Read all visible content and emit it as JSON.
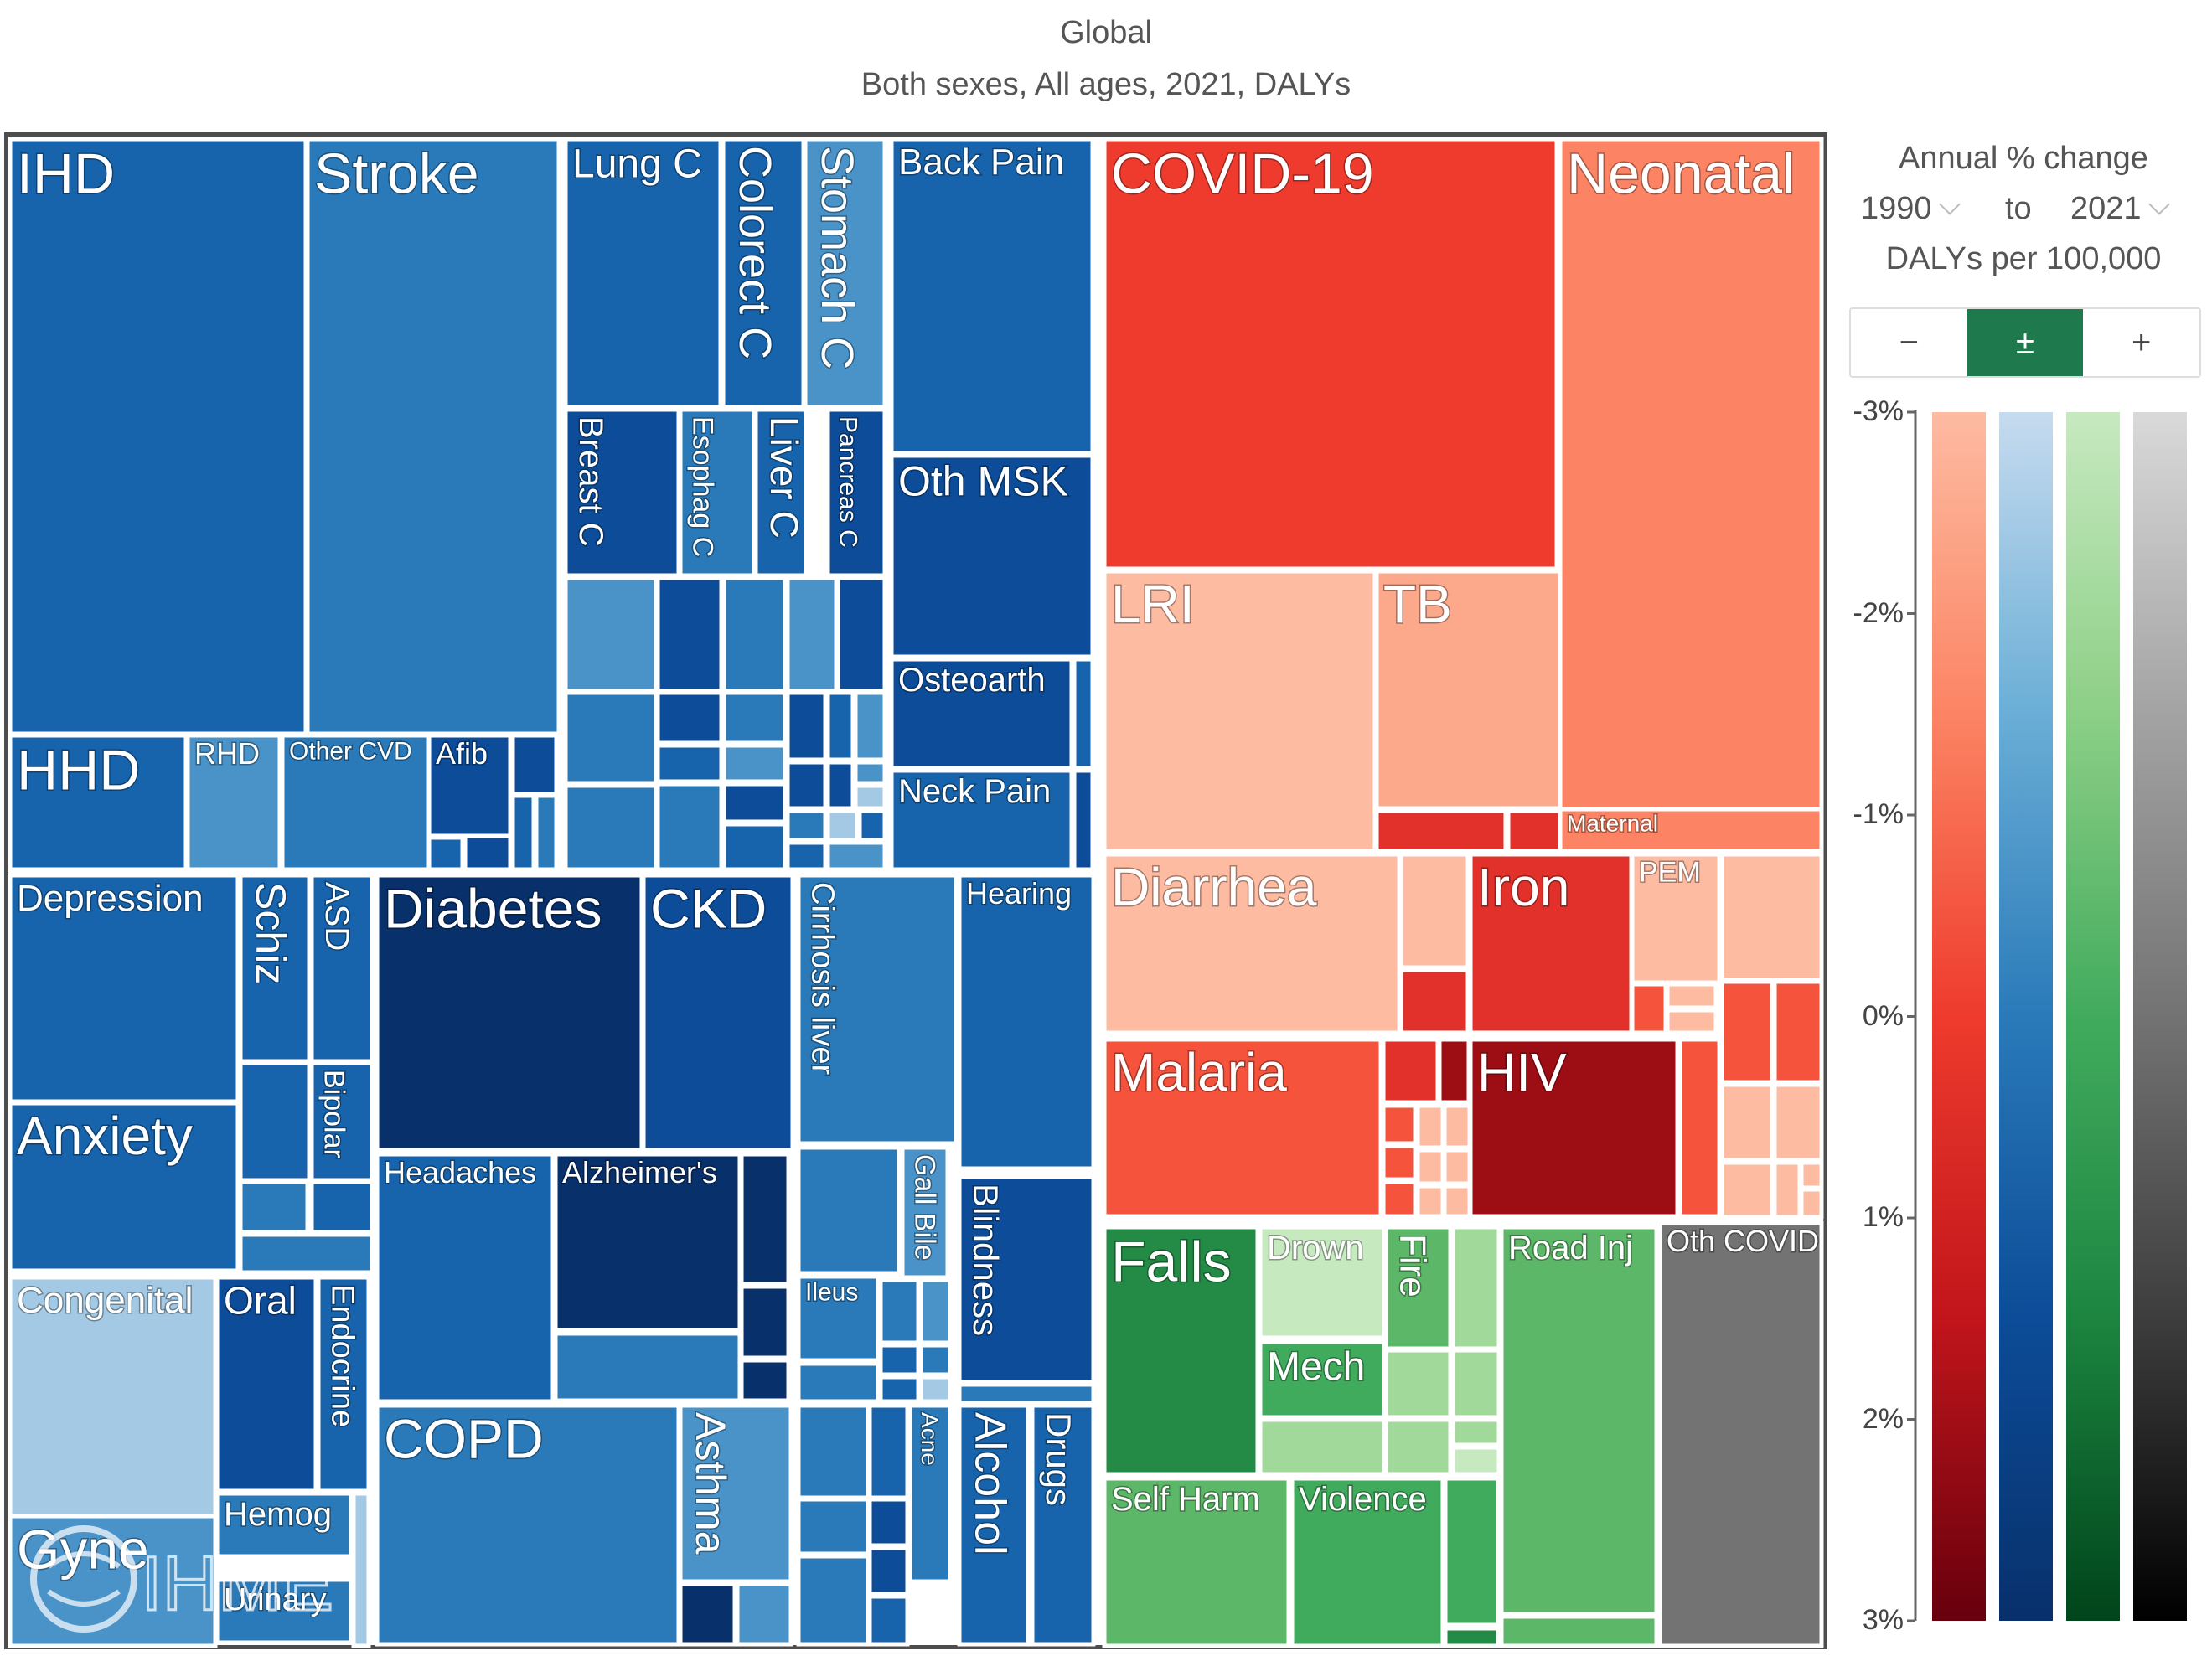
{
  "title": "Global",
  "subtitle": "Both sexes, All ages, 2021, DALYs",
  "legend": {
    "title": "Annual % change",
    "year_from": "1990",
    "to_word": "to",
    "year_to": "2021",
    "unit": "DALYs per 100,000",
    "toggle": [
      {
        "label": "−",
        "active": false
      },
      {
        "label": "±",
        "active": true
      },
      {
        "label": "+",
        "active": false
      }
    ],
    "ticks": [
      "-3%",
      "-2%",
      "-1%",
      "0%",
      "1%",
      "2%",
      "3%"
    ],
    "ramps": [
      "red",
      "blue",
      "green",
      "gray"
    ]
  },
  "watermark": "IHME",
  "chart_data": {
    "type": "treemap",
    "colors": {
      "dark_navy": "#08306b",
      "dark_blue": "#0c4c98",
      "blue": "#1764ad",
      "mid_blue": "#2a7ab9",
      "light_blue": "#4a93c8",
      "pale_blue": "#a3c9e4",
      "bright_red": "#ee3b2d",
      "dark_red": "#9d0d14",
      "red": "#e2302a",
      "red_orange": "#f5533b",
      "coral": "#fc8464",
      "salmon": "#fca88b",
      "light_salmon": "#fdbba1",
      "dark_green": "#238b45",
      "green": "#41ab5d",
      "mid_green": "#5cb769",
      "light_green": "#a1d99b",
      "pale_green": "#c7e9c0",
      "gray": "#737373"
    },
    "labeled_cells": [
      {
        "label": "IHD",
        "color": "blue"
      },
      {
        "label": "Stroke",
        "color": "mid_blue"
      },
      {
        "label": "Lung C",
        "color": "blue"
      },
      {
        "label": "Colorect C",
        "color": "blue"
      },
      {
        "label": "Stomach C",
        "color": "light_blue"
      },
      {
        "label": "Back Pain",
        "color": "blue"
      },
      {
        "label": "Breast C",
        "color": "dark_blue"
      },
      {
        "label": "Esophag C",
        "color": "mid_blue"
      },
      {
        "label": "Liver C",
        "color": "blue"
      },
      {
        "label": "Pancreas C",
        "color": "dark_blue"
      },
      {
        "label": "Oth MSK",
        "color": "dark_blue"
      },
      {
        "label": "Osteoarth",
        "color": "dark_blue"
      },
      {
        "label": "Neck Pain",
        "color": "blue"
      },
      {
        "label": "HHD",
        "color": "blue"
      },
      {
        "label": "RHD",
        "color": "light_blue"
      },
      {
        "label": "Other CVD",
        "color": "mid_blue"
      },
      {
        "label": "Afib",
        "color": "dark_blue"
      },
      {
        "label": "COVID-19",
        "color": "bright_red"
      },
      {
        "label": "Neonatal",
        "color": "coral"
      },
      {
        "label": "LRI",
        "color": "light_salmon"
      },
      {
        "label": "TB",
        "color": "salmon"
      },
      {
        "label": "Maternal",
        "color": "coral"
      },
      {
        "label": "Diarrhea",
        "color": "light_salmon"
      },
      {
        "label": "Iron",
        "color": "red"
      },
      {
        "label": "PEM",
        "color": "light_salmon"
      },
      {
        "label": "Malaria",
        "color": "red_orange"
      },
      {
        "label": "HIV",
        "color": "dark_red"
      },
      {
        "label": "Depression",
        "color": "blue"
      },
      {
        "label": "Schiz",
        "color": "blue"
      },
      {
        "label": "ASD",
        "color": "blue"
      },
      {
        "label": "Bipolar",
        "color": "blue"
      },
      {
        "label": "Anxiety",
        "color": "blue"
      },
      {
        "label": "Diabetes",
        "color": "dark_navy"
      },
      {
        "label": "CKD",
        "color": "dark_blue"
      },
      {
        "label": "Cirrhosis liver",
        "color": "mid_blue"
      },
      {
        "label": "Hearing",
        "color": "blue"
      },
      {
        "label": "Headaches",
        "color": "blue"
      },
      {
        "label": "Alzheimer's",
        "color": "dark_navy"
      },
      {
        "label": "Gall Bile",
        "color": "light_blue"
      },
      {
        "label": "Ileus",
        "color": "mid_blue"
      },
      {
        "label": "Blindness",
        "color": "dark_blue"
      },
      {
        "label": "Congenital",
        "color": "pale_blue"
      },
      {
        "label": "Oral",
        "color": "dark_blue"
      },
      {
        "label": "Endocrine",
        "color": "blue"
      },
      {
        "label": "Hemog",
        "color": "mid_blue"
      },
      {
        "label": "Gyne",
        "color": "light_blue"
      },
      {
        "label": "Urinary",
        "color": "mid_blue"
      },
      {
        "label": "COPD",
        "color": "mid_blue"
      },
      {
        "label": "Asthma",
        "color": "light_blue"
      },
      {
        "label": "Acne",
        "color": "mid_blue"
      },
      {
        "label": "Alcohol",
        "color": "blue"
      },
      {
        "label": "Drugs",
        "color": "blue"
      },
      {
        "label": "Falls",
        "color": "dark_green"
      },
      {
        "label": "Drown",
        "color": "pale_green"
      },
      {
        "label": "Fire",
        "color": "mid_green"
      },
      {
        "label": "Mech",
        "color": "green"
      },
      {
        "label": "Road Inj",
        "color": "mid_green"
      },
      {
        "label": "Oth COVID",
        "color": "gray"
      },
      {
        "label": "Self Harm",
        "color": "mid_green"
      },
      {
        "label": "Violence",
        "color": "green"
      }
    ]
  }
}
